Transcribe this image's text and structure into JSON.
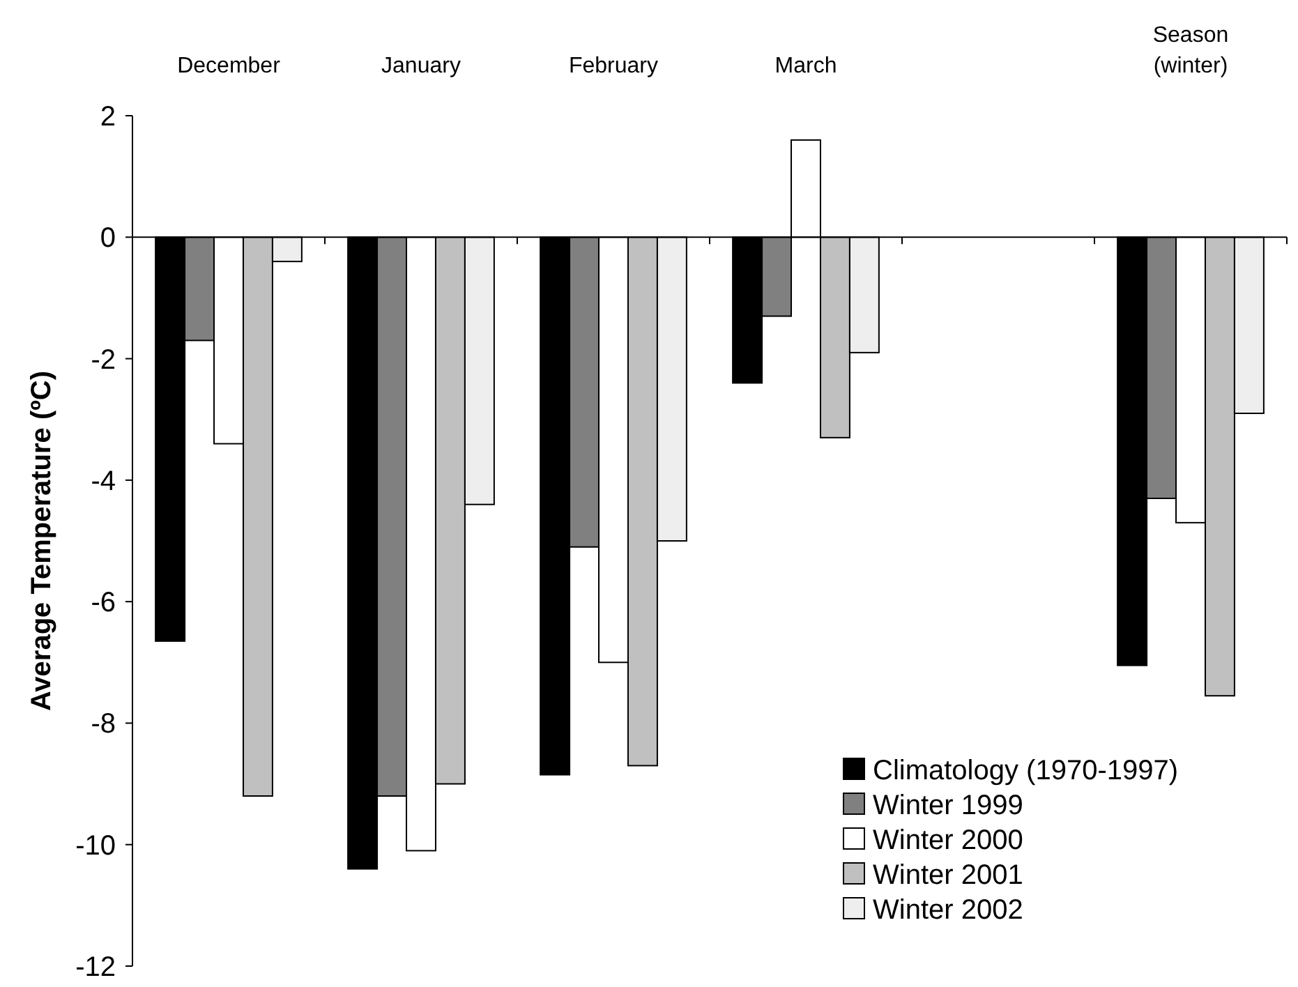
{
  "chart_data": {
    "type": "bar",
    "ylabel": "Average Temperature (ºC)",
    "categories": [
      "December",
      "January",
      "February",
      "March",
      null,
      "Season\n(winter)"
    ],
    "series": [
      {
        "name": "Climatology (1970-1997)",
        "color": "#000000",
        "values": [
          -6.65,
          -10.4,
          -8.85,
          -2.4,
          null,
          -7.05
        ]
      },
      {
        "name": "Winter 1999",
        "color": "#808080",
        "values": [
          -1.7,
          -9.2,
          -5.1,
          -1.3,
          null,
          -4.3
        ]
      },
      {
        "name": "Winter 2000",
        "color": "#ffffff",
        "values": [
          -3.4,
          -10.1,
          -7.0,
          1.6,
          null,
          -4.7
        ]
      },
      {
        "name": "Winter 2001",
        "color": "#c0c0c0",
        "values": [
          -9.2,
          -9.0,
          -8.7,
          -3.3,
          null,
          -7.55
        ]
      },
      {
        "name": "Winter 2002",
        "color": "#eeeeee",
        "values": [
          -0.4,
          -4.4,
          -5.0,
          -1.9,
          null,
          -2.9
        ]
      }
    ],
    "ylim": [
      -12,
      2
    ],
    "yticks": [
      -12,
      -10,
      -8,
      -6,
      -4,
      -2,
      0,
      2
    ],
    "legend": "bottom right"
  }
}
